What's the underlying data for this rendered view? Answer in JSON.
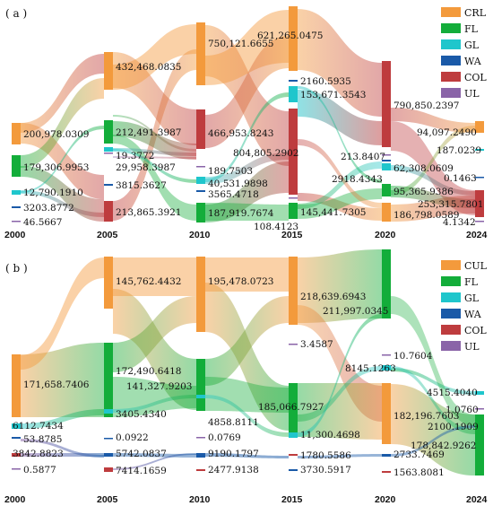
{
  "chart_data": [
    {
      "type": "sankey",
      "panel_label": "( a )",
      "years": [
        "2000",
        "2005",
        "2010",
        "2015",
        "2020",
        "2024"
      ],
      "legend": [
        {
          "name": "CRL",
          "color": "#f39a3c"
        },
        {
          "name": "FL",
          "color": "#13ad3a"
        },
        {
          "name": "GL",
          "color": "#1fc6cc"
        },
        {
          "name": "WA",
          "color": "#1a5aa8"
        },
        {
          "name": "COL",
          "color": "#be3c3e"
        },
        {
          "name": "UL",
          "color": "#8a64a8"
        }
      ],
      "labels": [
        "200,978.0309",
        "179,306.9953",
        "12,790.1910",
        "3203.8772",
        "46.5667",
        "432,468.0835",
        "212,491.3987",
        "19.3772",
        "29,958.3987",
        "3815.3627",
        "213,865.3921",
        "750,121.6655",
        "466,953.8243",
        "189.7503",
        "40,531.9898",
        "3565.4718",
        "187,919.7674",
        "621,265.0475",
        "2160.5935",
        "153,671.3543",
        "804,805.2902",
        "108.4123",
        "145,441.7305",
        "790,850.2397",
        "213.8407",
        "2918.4343",
        "62,308.0609",
        "95,365.9386",
        "186,798.0589",
        "94,097.2490",
        "187.0239",
        "0.1463",
        "253,315.7801",
        "4.1342"
      ]
    },
    {
      "type": "sankey",
      "panel_label": "( b )",
      "years": [
        "2000",
        "2005",
        "2010",
        "2015",
        "2020",
        "2024"
      ],
      "legend": [
        {
          "name": "CUL",
          "color": "#f39a3c"
        },
        {
          "name": "FL",
          "color": "#13ad3a"
        },
        {
          "name": "GL",
          "color": "#1fc6cc"
        },
        {
          "name": "WA",
          "color": "#1a5aa8"
        },
        {
          "name": "COL",
          "color": "#be3c3e"
        },
        {
          "name": "UL",
          "color": "#8a64a8"
        }
      ],
      "labels": [
        "171,658.7406",
        "6112.7434",
        "53.8785",
        "3842.8823",
        "0.5877",
        "145,762.4432",
        "172,490.6418",
        "141,327.9203",
        "3405.4340",
        "0.0922",
        "5742.0837",
        "7414.1659",
        "195,478.0723",
        "4858.8111",
        "0.0769",
        "9190.1797",
        "2477.9138",
        "218,639.6943",
        "211,997.0345",
        "3.4587",
        "185,066.7927",
        "11,300.4698",
        "1780.5586",
        "3730.5917",
        "10.7604",
        "8145.1263",
        "182,196.7603",
        "2733.7469",
        "1563.8081",
        "4515.4040",
        "1.0760",
        "2100.1909",
        "178,842.9262"
      ]
    }
  ]
}
